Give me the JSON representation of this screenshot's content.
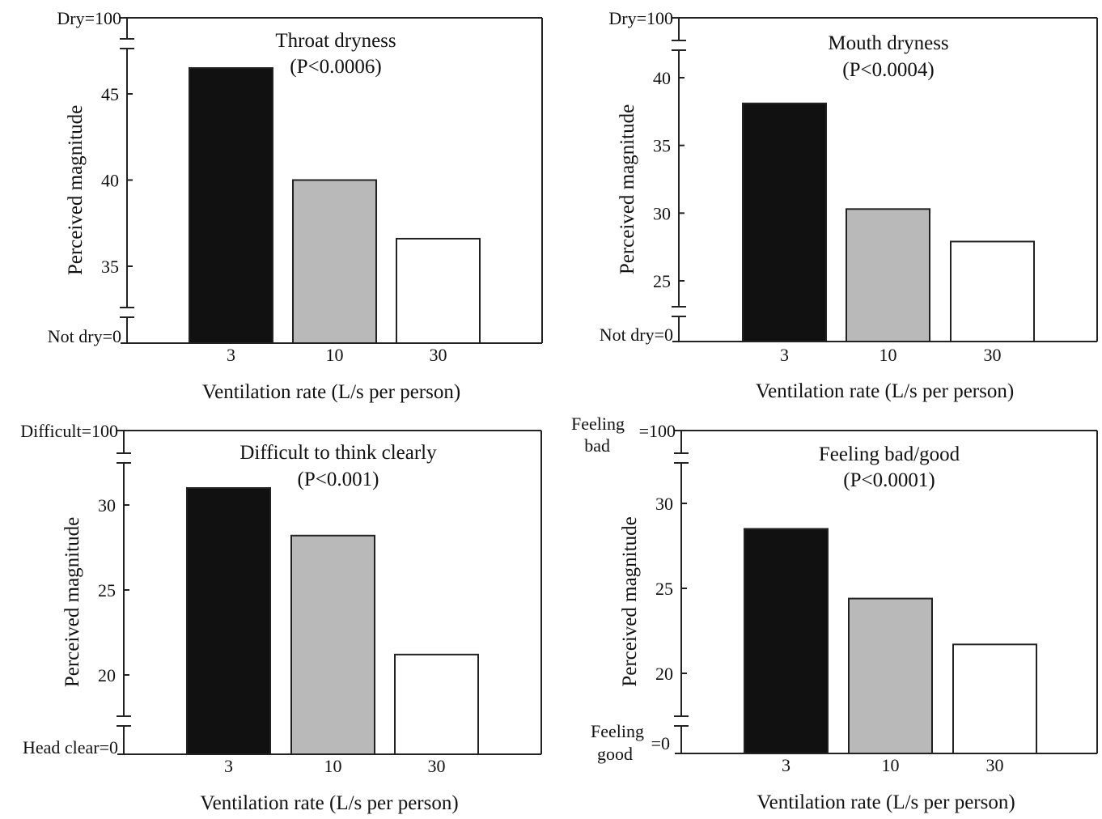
{
  "chart_data": [
    {
      "type": "bar",
      "title": "Throat dryness",
      "subtitle": "(P<0.0006)",
      "xlabel": "Ventilation rate (L/s per person)",
      "ylabel": "Perceived magnitude",
      "categories": [
        "3",
        "10",
        "30"
      ],
      "values": [
        46.5,
        40,
        36.6
      ],
      "ylim": [
        32,
        48
      ],
      "yticks": [
        35,
        40,
        45
      ],
      "ytick_labels": [
        "35",
        "40",
        "45"
      ],
      "top_label": "Dry=100",
      "bottom_label": "Not dry=0",
      "bar_colors": [
        "#111111",
        "#b9b9b9",
        "#ffffff"
      ]
    },
    {
      "type": "bar",
      "title": "Mouth dryness",
      "subtitle": "(P<0.0004)",
      "xlabel": "Ventilation rate (L/s per person)",
      "ylabel": "Perceived magnitude",
      "categories": [
        "3",
        "10",
        "30"
      ],
      "values": [
        38.1,
        30.3,
        27.9
      ],
      "ylim": [
        22,
        42
      ],
      "yticks": [
        25,
        30,
        35,
        40
      ],
      "ytick_labels": [
        "25",
        "30",
        "35",
        "40"
      ],
      "top_label": "Dry=100",
      "bottom_label": "Not dry=0",
      "bar_colors": [
        "#111111",
        "#b9b9b9",
        "#ffffff"
      ]
    },
    {
      "type": "bar",
      "title": "Difficult to think clearly",
      "subtitle": "(P<0.001)",
      "xlabel": "Ventilation rate (L/s per person)",
      "ylabel": "Perceived magnitude",
      "categories": [
        "3",
        "10",
        "30"
      ],
      "values": [
        31,
        28.2,
        21.2
      ],
      "ylim": [
        17.7,
        33.5
      ],
      "yticks": [
        20,
        25,
        30
      ],
      "ytick_labels": [
        "20",
        "25",
        "30"
      ],
      "top_label": "Difficult=100",
      "bottom_label": "Head clear=0",
      "bar_colors": [
        "#111111",
        "#b9b9b9",
        "#ffffff"
      ]
    },
    {
      "type": "bar",
      "title": "Feeling bad/good",
      "subtitle": "(P<0.0001)",
      "xlabel": "Ventilation rate (L/s per person)",
      "ylabel": "Perceived magnitude",
      "categories": [
        "3",
        "10",
        "30"
      ],
      "values": [
        28.5,
        24.4,
        21.7
      ],
      "ylim": [
        17.5,
        33.3
      ],
      "yticks": [
        20,
        25,
        30
      ],
      "ytick_labels": [
        "20",
        "25",
        "30"
      ],
      "top_label_word": "Feeling",
      "top_label_word2": "bad",
      "top_label_value": "=100",
      "bottom_label_word": "Feeling",
      "bottom_label_word2": "good",
      "bottom_label_value": "=0",
      "bar_colors": [
        "#111111",
        "#b9b9b9",
        "#ffffff"
      ]
    }
  ]
}
